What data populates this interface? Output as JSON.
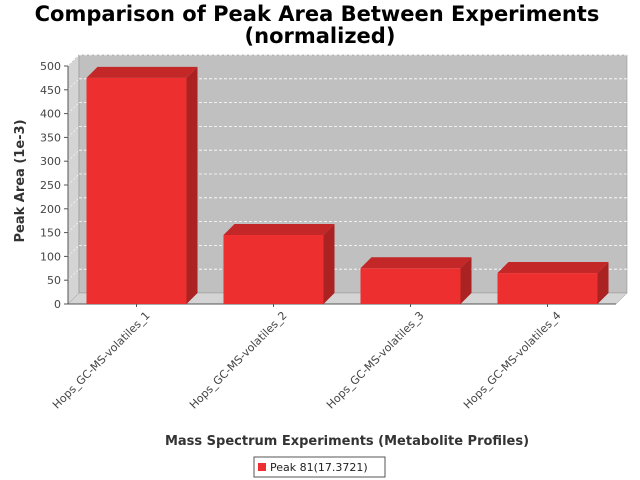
{
  "chart_data": {
    "type": "bar",
    "title_lines": [
      "Comparison of Peak Area Between Experiments",
      "(normalized)"
    ],
    "xlabel": "Mass Spectrum Experiments (Metabolite Profiles)",
    "ylabel": "Peak Area (1e-3)",
    "categories": [
      "Hops_GC-MS-volatiles_1",
      "Hops_GC-MS-volatiles_2",
      "Hops_GC-MS-volatiles_3",
      "Hops_GC-MS-volatiles_4"
    ],
    "series": [
      {
        "name": "Peak 81(17.3721)",
        "values": [
          475,
          145,
          75,
          65
        ],
        "color": "#ee2f2f"
      }
    ],
    "ylim": [
      0,
      500
    ],
    "yticks": [
      0,
      50,
      100,
      150,
      200,
      250,
      300,
      350,
      400,
      450,
      500
    ],
    "grid": true,
    "legend_position": "bottom",
    "colors": {
      "plot_background": "#c0c0c0",
      "wall": "#d4d4d4",
      "grid": "#ffffff"
    }
  }
}
